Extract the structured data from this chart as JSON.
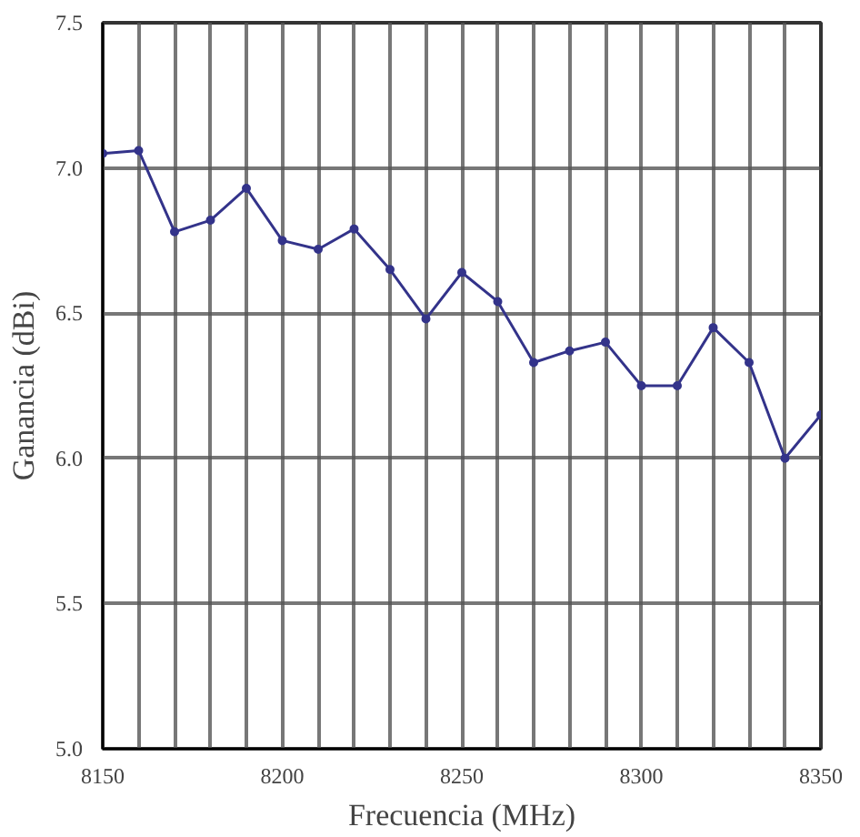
{
  "chart_data": {
    "type": "line",
    "xlabel": "Frecuencia (MHz)",
    "ylabel": "Ganancia (dBi)",
    "x": [
      8150,
      8160,
      8170,
      8180,
      8190,
      8200,
      8210,
      8220,
      8230,
      8240,
      8250,
      8260,
      8270,
      8280,
      8290,
      8300,
      8310,
      8320,
      8330,
      8340,
      8350
    ],
    "series": [
      {
        "color": "#33338a",
        "values": [
          7.05,
          7.06,
          6.78,
          6.82,
          6.93,
          6.75,
          6.72,
          6.79,
          6.65,
          6.48,
          6.64,
          6.54,
          6.33,
          6.37,
          6.4,
          6.25,
          6.25,
          6.45,
          6.33,
          6.0,
          6.15
        ]
      }
    ],
    "xlim": [
      8150,
      8350
    ],
    "ylim": [
      5.0,
      7.5
    ],
    "xticks": [
      8150,
      {
        "value": 8160,
        "label": null
      },
      {
        "value": 8170,
        "label": null
      },
      {
        "value": 8180,
        "label": null
      },
      {
        "value": 8190,
        "label": null
      },
      8200,
      {
        "value": 8210,
        "label": null
      },
      {
        "value": 8220,
        "label": null
      },
      {
        "value": 8230,
        "label": null
      },
      {
        "value": 8240,
        "label": null
      },
      8250,
      {
        "value": 8260,
        "label": null
      },
      {
        "value": 8270,
        "label": null
      },
      {
        "value": 8280,
        "label": null
      },
      {
        "value": 8290,
        "label": null
      },
      8300,
      {
        "value": 8310,
        "label": null
      },
      {
        "value": 8320,
        "label": null
      },
      {
        "value": 8330,
        "label": null
      },
      {
        "value": 8340,
        "label": null
      },
      8350
    ],
    "yticks": [
      {
        "value": 5.0,
        "label": "5.0"
      },
      5.5,
      {
        "value": 6.0,
        "label": "6.0"
      },
      6.5,
      {
        "value": 7.0,
        "label": "7.0"
      },
      7.5
    ],
    "grid": true,
    "marker": "circle",
    "line_style": "solid"
  }
}
